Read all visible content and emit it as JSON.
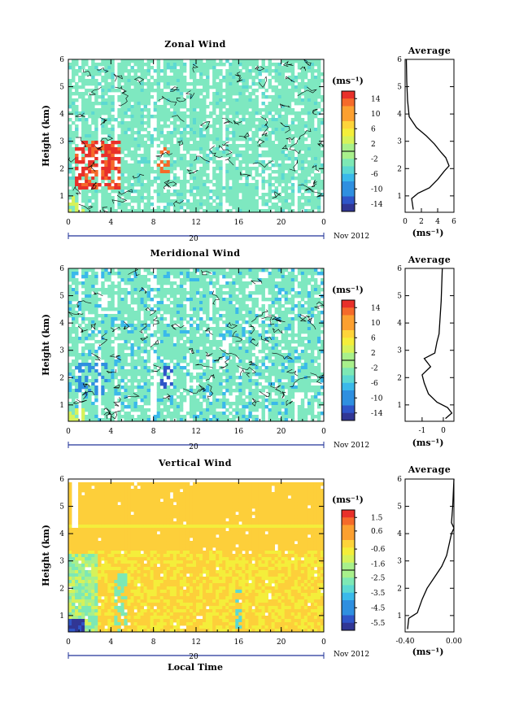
{
  "colors": {
    "jet": [
      "#313695",
      "#2f55c8",
      "#2f8fe0",
      "#3ab9ea",
      "#5cd9d2",
      "#7de8b5",
      "#a8f08b",
      "#d6f25a",
      "#f4ee3a",
      "#fed43a",
      "#fca030",
      "#f56a2a",
      "#e8302a"
    ],
    "wind_fill": "#7ee8c0",
    "vertical_fill": "#fdcf3a",
    "line": "#000000"
  },
  "chart_data": [
    {
      "type": "heatmap",
      "title": "Zonal Wind",
      "ylabel": "Height (km)",
      "ylim": [
        0.4,
        6.0
      ],
      "yticks": [
        "1",
        "2",
        "3",
        "4",
        "5",
        "6"
      ],
      "xlim": [
        0,
        24
      ],
      "xticks": [
        "0",
        "4",
        "8",
        "12",
        "16",
        "20",
        "0"
      ],
      "date_day": "20",
      "date_label": "Nov 2012",
      "colorbar": {
        "unit": "(ms⁻¹)",
        "min": -16,
        "max": 16,
        "ticks": [
          "14",
          "10",
          "6",
          "2",
          "-2",
          "-6",
          "-10",
          "-14"
        ]
      },
      "profile": {
        "title": "Average",
        "xlim": [
          0,
          6
        ],
        "xticks": [
          "0",
          "2",
          "4",
          "6"
        ],
        "xlabel": "(ms⁻¹)",
        "points": [
          [
            1.0,
            0.5
          ],
          [
            0.8,
            0.9
          ],
          [
            1.6,
            1.1
          ],
          [
            3.0,
            1.3
          ],
          [
            4.0,
            1.6
          ],
          [
            4.8,
            1.9
          ],
          [
            5.4,
            2.1
          ],
          [
            5.0,
            2.4
          ],
          [
            4.4,
            2.6
          ],
          [
            3.6,
            2.9
          ],
          [
            2.6,
            3.2
          ],
          [
            1.4,
            3.5
          ],
          [
            0.5,
            3.9
          ],
          [
            0.3,
            4.5
          ],
          [
            0.2,
            5.2
          ],
          [
            0.15,
            6.0
          ]
        ]
      }
    },
    {
      "type": "heatmap",
      "title": "Meridional Wind",
      "ylabel": "Height (km)",
      "ylim": [
        0.4,
        6.0
      ],
      "yticks": [
        "1",
        "2",
        "3",
        "4",
        "5",
        "6"
      ],
      "xlim": [
        0,
        24
      ],
      "xticks": [
        "0",
        "4",
        "8",
        "12",
        "16",
        "20",
        "0"
      ],
      "date_day": "20",
      "date_label": "Nov 2012",
      "colorbar": {
        "unit": "(ms⁻¹)",
        "min": -16,
        "max": 16,
        "ticks": [
          "14",
          "10",
          "6",
          "2",
          "-2",
          "-6",
          "-10",
          "-14"
        ]
      },
      "profile": {
        "title": "Average",
        "xlim": [
          -1.8,
          0.5
        ],
        "xticks": [
          "-1",
          "0"
        ],
        "xtick_values": [
          -1,
          0
        ],
        "xlabel": "(ms⁻¹)",
        "points": [
          [
            0.1,
            0.5
          ],
          [
            0.4,
            0.7
          ],
          [
            0.2,
            0.9
          ],
          [
            -0.3,
            1.1
          ],
          [
            -0.7,
            1.4
          ],
          [
            -0.9,
            1.8
          ],
          [
            -1.0,
            2.1
          ],
          [
            -0.6,
            2.4
          ],
          [
            -0.9,
            2.7
          ],
          [
            -0.4,
            2.9
          ],
          [
            -0.3,
            3.3
          ],
          [
            -0.2,
            3.6
          ],
          [
            -0.15,
            4.2
          ],
          [
            -0.1,
            4.8
          ],
          [
            -0.05,
            6.0
          ]
        ]
      }
    },
    {
      "type": "heatmap",
      "title": "Vertical Wind",
      "ylabel": "Height (km)",
      "ylim": [
        0.4,
        6.0
      ],
      "yticks": [
        "1",
        "2",
        "3",
        "4",
        "5",
        "6"
      ],
      "xlim": [
        0,
        24
      ],
      "xticks": [
        "0",
        "4",
        "8",
        "12",
        "16",
        "20",
        "0"
      ],
      "date_day": "20",
      "date_label": "Nov 2012",
      "xlabel": "Local Time",
      "colorbar": {
        "unit": "(ms⁻¹)",
        "min": -6.0,
        "max": 2.0,
        "ticks": [
          "1.5",
          "0.6",
          "-0.6",
          "-1.6",
          "-2.5",
          "-3.5",
          "-4.5",
          "-5.5"
        ]
      },
      "profile": {
        "title": "Average",
        "xlim": [
          -0.4,
          0.0
        ],
        "xticks": [
          "-0.40",
          "0.00"
        ],
        "xtick_values": [
          -0.4,
          0.0
        ],
        "xlabel": "(ms⁻¹)",
        "points": [
          [
            -0.38,
            0.5
          ],
          [
            -0.37,
            0.9
          ],
          [
            -0.3,
            1.1
          ],
          [
            -0.26,
            1.6
          ],
          [
            -0.22,
            2.0
          ],
          [
            -0.16,
            2.4
          ],
          [
            -0.1,
            2.8
          ],
          [
            -0.06,
            3.2
          ],
          [
            -0.04,
            3.6
          ],
          [
            -0.02,
            4.0
          ],
          [
            0.0,
            4.2
          ],
          [
            -0.02,
            4.4
          ],
          [
            -0.01,
            5.0
          ],
          [
            0.0,
            6.0
          ]
        ]
      }
    }
  ]
}
